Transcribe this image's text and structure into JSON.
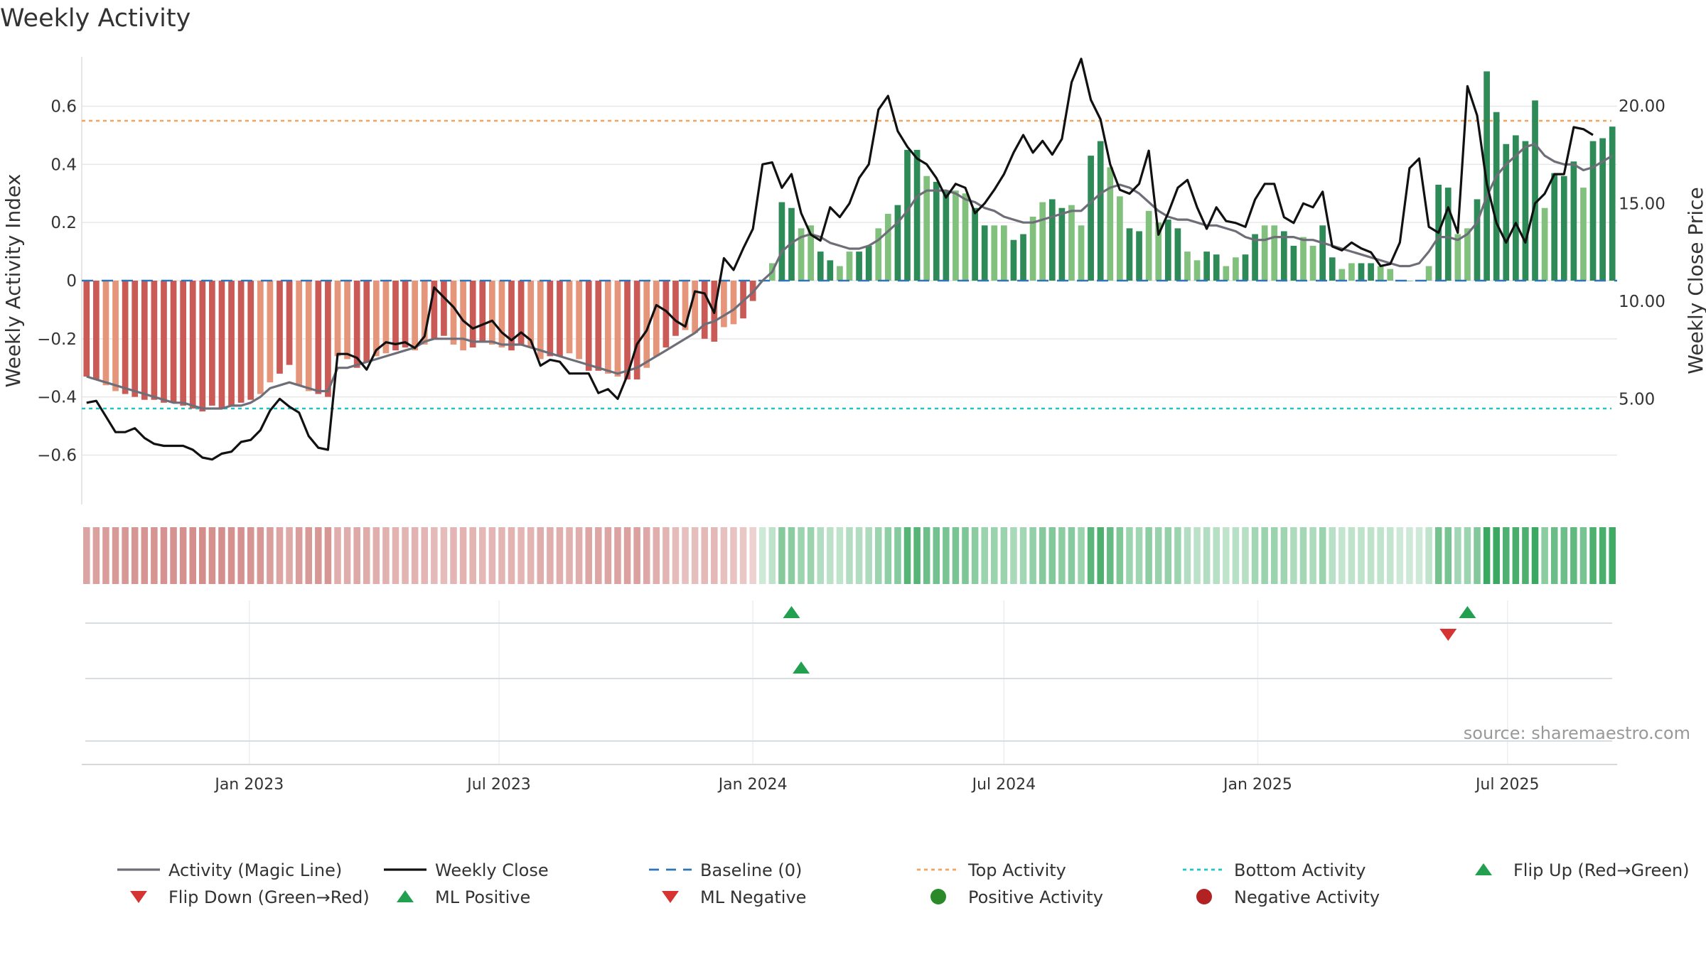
{
  "title": "Weekly Activity",
  "source": "source: sharemaestro.com",
  "colors": {
    "neg_dark": "#c95a56",
    "neg_light": "#e5957a",
    "pos_dark": "#2e8b57",
    "pos_light": "#82c07e",
    "magic_line": "#6e6e78",
    "close_line": "#111111",
    "baseline": "#2f74b5",
    "top_activity": "#f4a460",
    "bottom_activity": "#20c5c5",
    "flip_up": "#22a050",
    "flip_down": "#d63333",
    "positive_dot": "#2a8a2a",
    "negative_dot": "#b22222",
    "grid": "#e8e8e8"
  },
  "chart_data": {
    "type": "bar",
    "title": "Weekly Activity",
    "ylabel": "Weekly Activity Index",
    "y2label": "Weekly Close Price",
    "ylim": [
      -0.77,
      0.77
    ],
    "y2lim": [
      -0.4,
      22.5
    ],
    "yticks": [
      -0.6,
      -0.4,
      -0.2,
      0,
      0.2,
      0.4,
      0.6
    ],
    "ytick_labels": [
      "−0.6",
      "−0.4",
      "−0.2",
      "0",
      "0.2",
      "0.4",
      "0.6"
    ],
    "y2ticks": [
      5,
      10,
      15,
      20
    ],
    "y2tick_labels": [
      "5.00",
      "10.00",
      "15.00",
      "20.00"
    ],
    "start_date": "2022-09-05",
    "week_count": 157,
    "x_tick_labels": [
      {
        "date": "2023-01-01",
        "label": "Jan 2023"
      },
      {
        "date": "2023-07-01",
        "label": "Jul 2023"
      },
      {
        "date": "2024-01-01",
        "label": "Jan 2024"
      },
      {
        "date": "2024-07-01",
        "label": "Jul 2024"
      },
      {
        "date": "2025-01-01",
        "label": "Jan 2025"
      },
      {
        "date": "2025-07-01",
        "label": "Jul 2025"
      }
    ],
    "reference_lines": {
      "top_activity": 0.55,
      "bottom_activity": -0.44,
      "baseline": 0
    },
    "activity_bars": [
      -0.33,
      -0.34,
      -0.36,
      -0.38,
      -0.39,
      -0.4,
      -0.41,
      -0.41,
      -0.42,
      -0.42,
      -0.43,
      -0.44,
      -0.45,
      -0.43,
      -0.44,
      -0.43,
      -0.42,
      -0.41,
      -0.39,
      -0.35,
      -0.32,
      -0.29,
      -0.36,
      -0.38,
      -0.39,
      -0.4,
      -0.26,
      -0.27,
      -0.3,
      -0.28,
      -0.26,
      -0.25,
      -0.24,
      -0.23,
      -0.24,
      -0.22,
      -0.2,
      -0.19,
      -0.22,
      -0.24,
      -0.23,
      -0.21,
      -0.22,
      -0.23,
      -0.24,
      -0.22,
      -0.23,
      -0.27,
      -0.26,
      -0.26,
      -0.25,
      -0.27,
      -0.31,
      -0.31,
      -0.32,
      -0.33,
      -0.34,
      -0.34,
      -0.3,
      -0.26,
      -0.23,
      -0.19,
      -0.17,
      -0.18,
      -0.2,
      -0.21,
      -0.16,
      -0.15,
      -0.13,
      -0.07,
      0.0,
      0.06,
      0.27,
      0.25,
      0.18,
      0.19,
      0.1,
      0.07,
      0.05,
      0.1,
      0.1,
      0.12,
      0.18,
      0.23,
      0.26,
      0.45,
      0.45,
      0.36,
      0.34,
      0.31,
      0.31,
      0.3,
      0.25,
      0.19,
      0.19,
      0.19,
      0.14,
      0.16,
      0.22,
      0.27,
      0.28,
      0.25,
      0.26,
      0.19,
      0.43,
      0.48,
      0.39,
      0.29,
      0.18,
      0.17,
      0.24,
      0.2,
      0.21,
      0.18,
      0.1,
      0.07,
      0.1,
      0.09,
      0.05,
      0.08,
      0.09,
      0.16,
      0.19,
      0.19,
      0.17,
      0.12,
      0.15,
      0.12,
      0.19,
      0.08,
      0.04,
      0.06,
      0.06,
      0.06,
      0.05,
      0.04,
      0.0,
      0.0,
      0.0,
      0.05,
      0.33,
      0.32,
      0.16,
      0.18,
      0.28,
      0.72,
      0.58,
      0.47,
      0.5,
      0.48,
      0.62,
      0.25,
      0.37,
      0.36,
      0.41,
      0.32,
      0.48,
      0.49,
      0.53
    ],
    "magic_line": [
      -0.33,
      -0.34,
      -0.35,
      -0.36,
      -0.37,
      -0.38,
      -0.39,
      -0.4,
      -0.41,
      -0.42,
      -0.42,
      -0.43,
      -0.44,
      -0.44,
      -0.44,
      -0.43,
      -0.43,
      -0.42,
      -0.4,
      -0.37,
      -0.36,
      -0.35,
      -0.36,
      -0.37,
      -0.38,
      -0.38,
      -0.3,
      -0.3,
      -0.29,
      -0.28,
      -0.27,
      -0.26,
      -0.25,
      -0.24,
      -0.23,
      -0.21,
      -0.2,
      -0.2,
      -0.2,
      -0.2,
      -0.21,
      -0.21,
      -0.21,
      -0.22,
      -0.22,
      -0.22,
      -0.23,
      -0.24,
      -0.25,
      -0.26,
      -0.27,
      -0.28,
      -0.29,
      -0.3,
      -0.31,
      -0.32,
      -0.31,
      -0.3,
      -0.28,
      -0.26,
      -0.24,
      -0.22,
      -0.2,
      -0.18,
      -0.15,
      -0.14,
      -0.12,
      -0.1,
      -0.07,
      -0.04,
      0.0,
      0.03,
      0.1,
      0.13,
      0.15,
      0.16,
      0.15,
      0.13,
      0.12,
      0.11,
      0.11,
      0.12,
      0.14,
      0.17,
      0.2,
      0.24,
      0.29,
      0.31,
      0.31,
      0.31,
      0.3,
      0.28,
      0.27,
      0.25,
      0.24,
      0.22,
      0.21,
      0.2,
      0.2,
      0.21,
      0.22,
      0.23,
      0.24,
      0.24,
      0.27,
      0.3,
      0.32,
      0.33,
      0.32,
      0.3,
      0.27,
      0.24,
      0.22,
      0.21,
      0.21,
      0.2,
      0.19,
      0.19,
      0.18,
      0.17,
      0.15,
      0.14,
      0.14,
      0.15,
      0.15,
      0.15,
      0.14,
      0.14,
      0.13,
      0.12,
      0.11,
      0.1,
      0.09,
      0.08,
      0.07,
      0.06,
      0.05,
      0.05,
      0.06,
      0.1,
      0.15,
      0.15,
      0.14,
      0.16,
      0.2,
      0.29,
      0.36,
      0.4,
      0.43,
      0.46,
      0.47,
      0.43,
      0.41,
      0.4,
      0.4,
      0.38,
      0.39,
      0.41,
      0.43
    ],
    "weekly_close": [
      4.8,
      4.9,
      4.1,
      3.3,
      3.3,
      3.5,
      3.0,
      2.7,
      2.6,
      2.6,
      2.6,
      2.4,
      2.0,
      1.9,
      2.2,
      2.3,
      2.8,
      2.9,
      3.4,
      4.4,
      5.0,
      4.6,
      4.3,
      3.1,
      2.5,
      2.4,
      7.3,
      7.3,
      7.1,
      6.5,
      7.5,
      7.9,
      7.8,
      7.9,
      7.6,
      8.2,
      10.7,
      10.2,
      9.7,
      9.0,
      8.6,
      8.8,
      9.0,
      8.4,
      8.0,
      8.4,
      8.0,
      6.7,
      7.0,
      6.9,
      6.3,
      6.3,
      6.3,
      5.3,
      5.5,
      5.0,
      6.2,
      7.8,
      8.5,
      9.8,
      9.5,
      9.0,
      8.7,
      10.5,
      10.4,
      9.4,
      12.2,
      11.6,
      12.7,
      13.7,
      17.0,
      17.1,
      15.8,
      16.5,
      14.5,
      13.4,
      13.1,
      14.8,
      14.3,
      15.0,
      16.3,
      17.0,
      19.8,
      20.5,
      18.7,
      17.9,
      17.3,
      17.0,
      16.3,
      15.3,
      16.0,
      15.8,
      14.5,
      15.0,
      15.7,
      16.5,
      17.6,
      18.5,
      17.6,
      18.2,
      17.5,
      18.3,
      21.2,
      22.4,
      20.3,
      19.3,
      17.0,
      15.7,
      15.5,
      16.0,
      17.7,
      13.4,
      14.5,
      15.8,
      16.2,
      14.8,
      13.7,
      14.8,
      14.1,
      14.0,
      13.8,
      15.2,
      16.0,
      16.0,
      14.3,
      14.0,
      15.0,
      14.8,
      15.6,
      12.8,
      12.6,
      13.0,
      12.7,
      12.5,
      11.8,
      11.9,
      13.0,
      16.8,
      17.3,
      13.8,
      13.5,
      14.8,
      13.5,
      21.0,
      19.5,
      16.0,
      14.0,
      13.0,
      14.0,
      13.0,
      15.0,
      15.5,
      16.5,
      16.5,
      18.9,
      18.8,
      18.5
    ],
    "ml_positive_dates": [
      "2024-02-05"
    ],
    "flip_up_dates": [
      "2024-01-29",
      "2025-06-02"
    ],
    "flip_down_dates": [
      "2025-05-19"
    ],
    "legend": [
      "Activity (Magic Line)",
      "Weekly Close",
      "Baseline (0)",
      "Top Activity",
      "Bottom Activity",
      "Flip Up (Red→Green)",
      "Flip Down (Green→Red)",
      "ML Positive",
      "ML Negative",
      "Positive Activity",
      "Negative Activity"
    ]
  }
}
